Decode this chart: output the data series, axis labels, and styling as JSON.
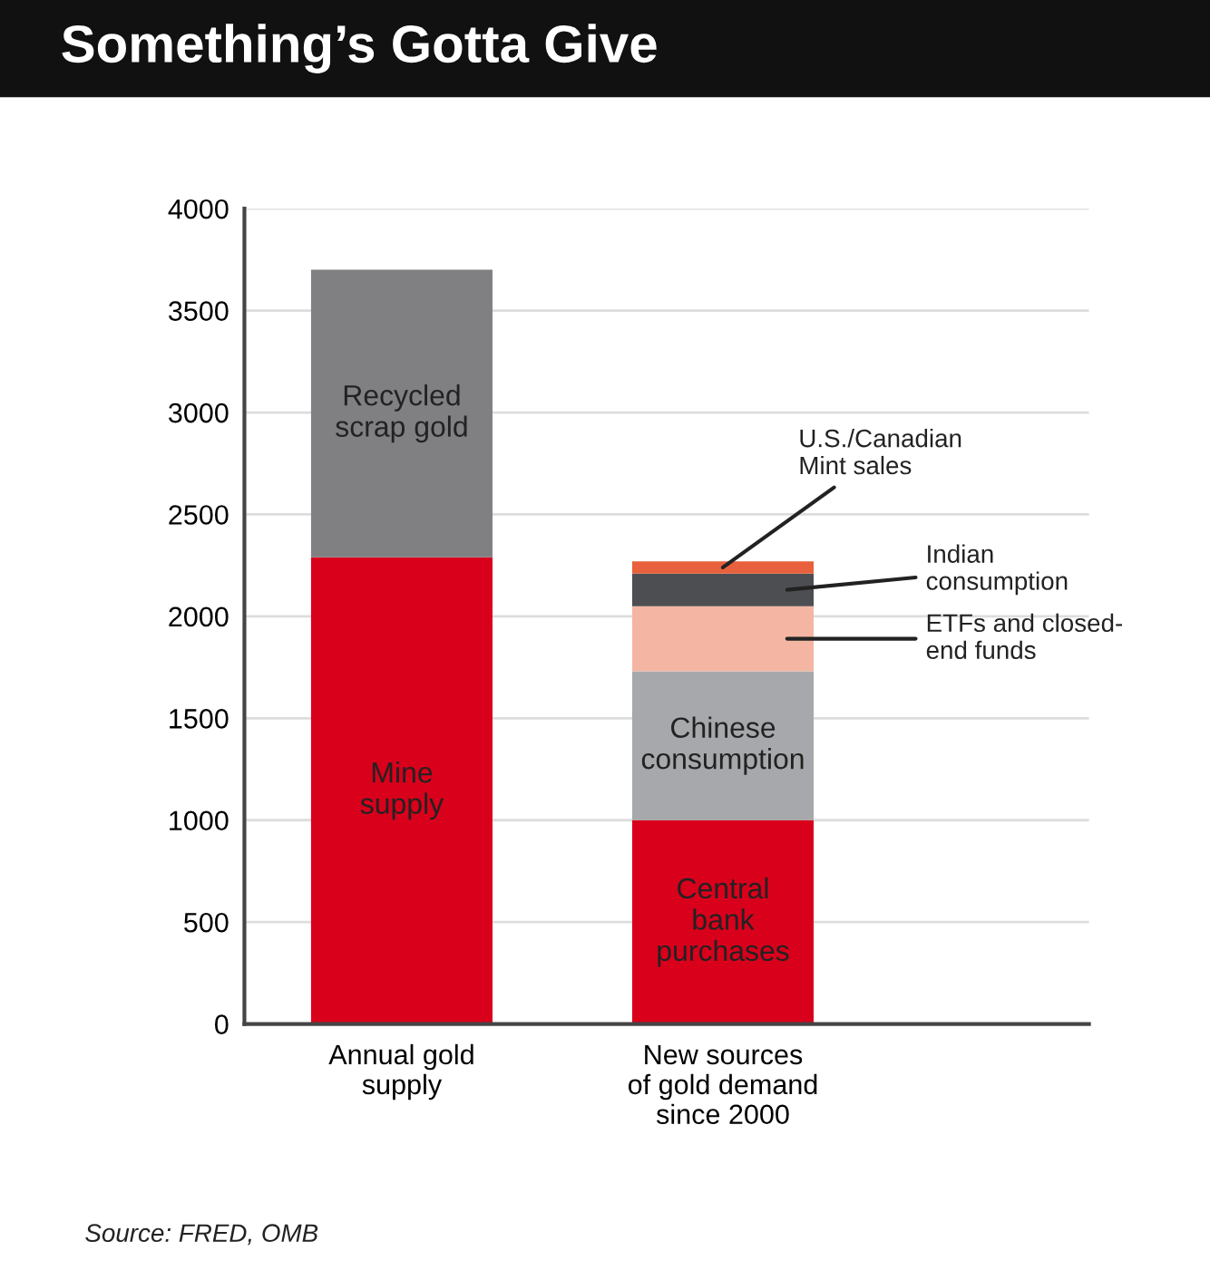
{
  "chart_data": {
    "type": "bar",
    "title": "Something’s Gotta Give",
    "stacked": true,
    "categories": [
      "Annual gold\nsupply",
      "New sources\nof gold demand\nsince 2000"
    ],
    "series": [
      {
        "name": "Mine\nsupply",
        "color": "#d9001b",
        "values": [
          2290,
          null
        ]
      },
      {
        "name": "Recycled\nscrap gold",
        "color": "#808083",
        "values": [
          1410,
          null
        ]
      },
      {
        "name": "Central\nbank\npurchases",
        "color": "#d9001b",
        "values": [
          null,
          1000
        ]
      },
      {
        "name": "Chinese\nconsumption",
        "color": "#a7a8ab",
        "values": [
          null,
          730
        ]
      },
      {
        "name": "ETFs and closed-\nend funds",
        "color": "#f4b6a3",
        "values": [
          null,
          320
        ]
      },
      {
        "name": "Indian\nconsumption",
        "color": "#4d4e51",
        "values": [
          null,
          160
        ]
      },
      {
        "name": "U.S./Canadian\nMint sales",
        "color": "#e8603c",
        "values": [
          null,
          60
        ]
      }
    ],
    "ylim": [
      0,
      4000
    ],
    "yticks": [
      0,
      500,
      1000,
      1500,
      2000,
      2500,
      3000,
      3500,
      4000
    ],
    "grid": "y",
    "annotations": [
      "Source: FRED, OMB"
    ]
  }
}
